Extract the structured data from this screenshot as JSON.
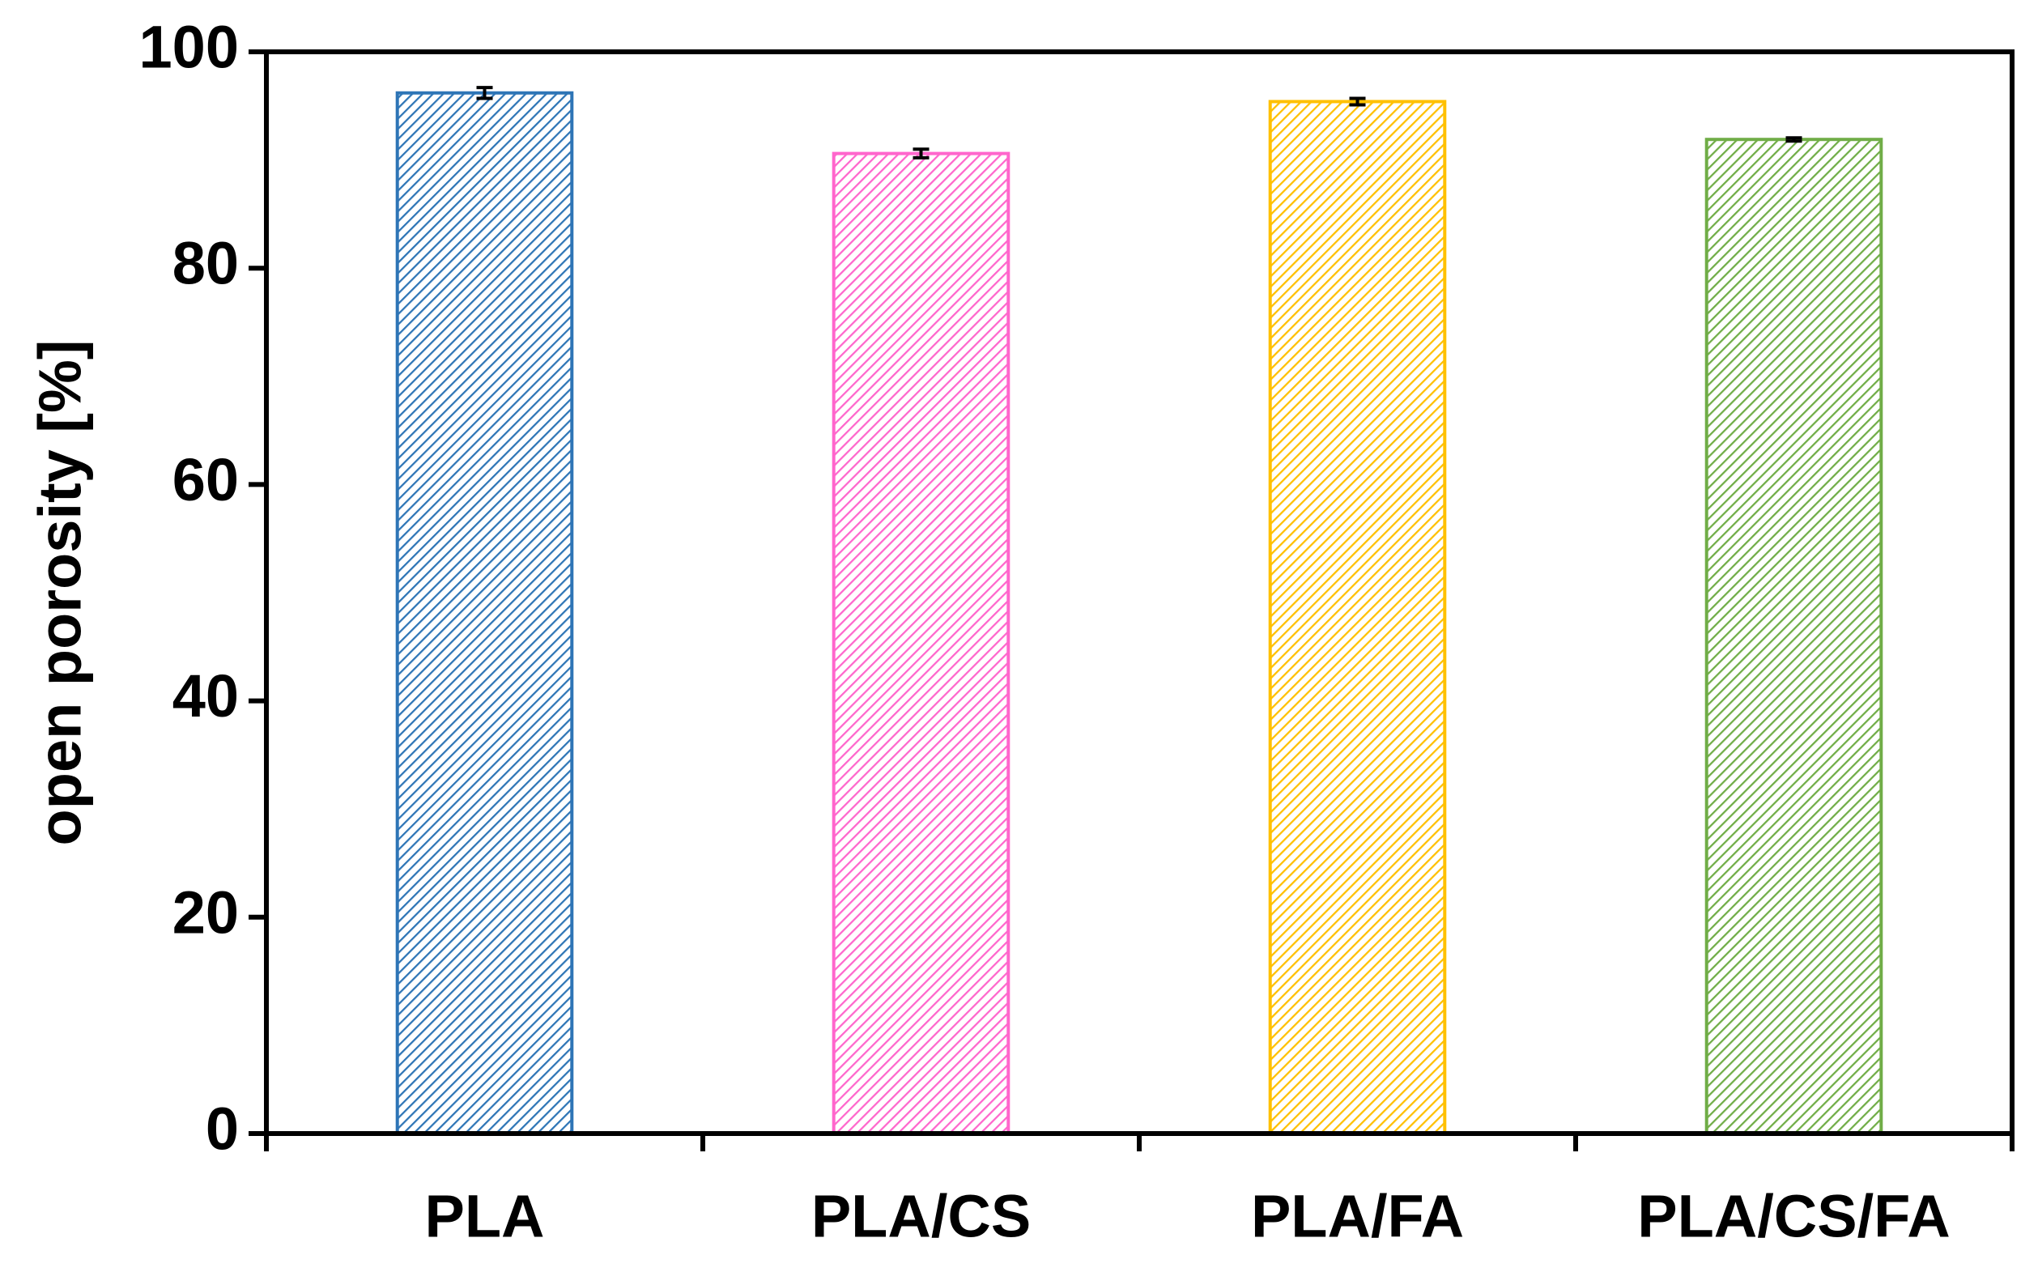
{
  "chart_data": {
    "type": "bar",
    "y_label": "open porosity [%]",
    "categories": [
      "PLA",
      "PLA/CS",
      "PLA/FA",
      "PLA/CS/FA"
    ],
    "values": [
      96.2,
      90.6,
      95.4,
      91.9
    ],
    "errors": [
      0.5,
      0.4,
      0.3,
      0.15
    ],
    "colors": [
      "#2e75b6",
      "#ff66cc",
      "#ffc000",
      "#70ad47"
    ],
    "hatch": true,
    "ylim": [
      0,
      100
    ],
    "yticks": [
      0,
      20,
      40,
      60,
      80,
      100
    ],
    "grid": false
  }
}
